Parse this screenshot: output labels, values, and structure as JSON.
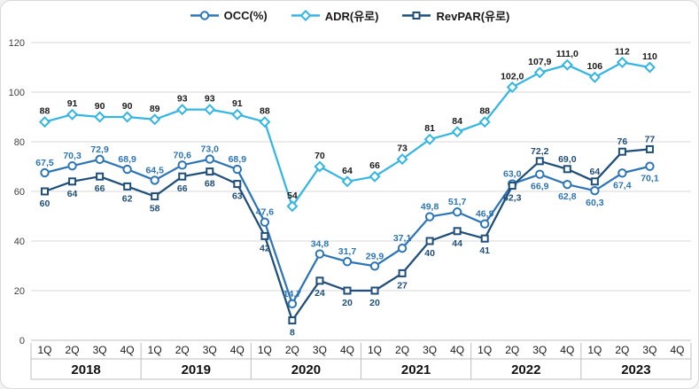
{
  "legend": {
    "occ_label": "OCC(%)",
    "adr_label": "ADR(유로)",
    "revpar_label": "RevPAR(유로)"
  },
  "chart_data": {
    "type": "line",
    "x_labels": [
      "1Q",
      "2Q",
      "3Q",
      "4Q",
      "1Q",
      "2Q",
      "3Q",
      "4Q",
      "1Q",
      "2Q",
      "3Q",
      "4Q",
      "1Q",
      "2Q",
      "3Q",
      "4Q",
      "1Q",
      "2Q",
      "3Q",
      "4Q",
      "1Q",
      "2Q",
      "3Q",
      "4Q"
    ],
    "year_groups": [
      "2018",
      "2019",
      "2020",
      "2021",
      "2022",
      "2023"
    ],
    "ylim": [
      0,
      120
    ],
    "y_ticks": [
      0,
      20,
      40,
      60,
      80,
      100,
      120
    ],
    "grid": true,
    "legend_position": "top",
    "series": [
      {
        "id": "occ",
        "name": "OCC(%)",
        "marker": "circle",
        "color": "#2E75B6",
        "label_color": "#2E75B6",
        "values": [
          67.5,
          70.3,
          72.9,
          68.9,
          64.5,
          70.6,
          73.0,
          68.9,
          47.6,
          14.7,
          34.8,
          31.7,
          29.9,
          37.1,
          49.8,
          51.7,
          46.9,
          63.0,
          66.9,
          62.8,
          60.3,
          67.4,
          70.1
        ],
        "labels": [
          "67,5",
          "70,3",
          "72,9",
          "68,9",
          "64,5",
          "70,6",
          "73,0",
          "68,9",
          "47,6",
          "14,7",
          "34,8",
          "31,7",
          "29,9",
          "37,1",
          "49,8",
          "51,7",
          "46,9",
          "63,0",
          "66,9",
          "62,8",
          "60,3",
          "67,4",
          "70,1"
        ]
      },
      {
        "id": "adr",
        "name": "ADR(유로)",
        "marker": "diamond",
        "color": "#35B6E2",
        "label_color": "#1a1a1a",
        "values": [
          88,
          91,
          90,
          90,
          89,
          93,
          93,
          91,
          88,
          54,
          70,
          64,
          66,
          73,
          81,
          84,
          88,
          102.0,
          107.9,
          111.0,
          106,
          112,
          110
        ],
        "labels": [
          "88",
          "91",
          "90",
          "90",
          "89",
          "93",
          "93",
          "91",
          "88",
          "54",
          "70",
          "64",
          "66",
          "73",
          "81",
          "84",
          "88",
          "102,0",
          "107,9",
          "111,0",
          "106",
          "112",
          "110"
        ]
      },
      {
        "id": "revpar",
        "name": "RevPAR(유로)",
        "marker": "square",
        "color": "#1F4E79",
        "label_color": "#1F4E79",
        "values": [
          60,
          64,
          66,
          62,
          58,
          66,
          68,
          63,
          42,
          8,
          24,
          20,
          20,
          27,
          40,
          44,
          41,
          62.3,
          72.2,
          69.0,
          64,
          76,
          77
        ],
        "labels": [
          "60",
          "64",
          "66",
          "62",
          "58",
          "66",
          "68",
          "63",
          "42",
          "8",
          "24",
          "20",
          "20",
          "27",
          "40",
          "44",
          "41",
          "62,3",
          "72,2",
          "69,0",
          "64",
          "76",
          "77"
        ]
      }
    ]
  }
}
